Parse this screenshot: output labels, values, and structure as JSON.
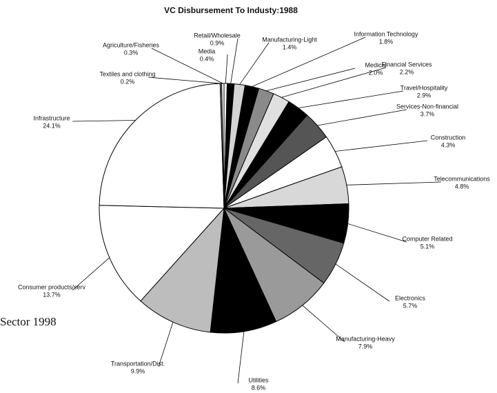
{
  "chart_data": {
    "type": "pie",
    "title": "VC Disbursement To Industy:1988",
    "caption": "Sector 1998",
    "categories": [
      "Media",
      "Retail/Wholesale",
      "Manufacturing-Light",
      "Information Technology",
      "Medical",
      "Financial Services",
      "Travel/Hospitality",
      "Services-Non-financial",
      "Construction",
      "Telecommunications",
      "Computer Related",
      "Electronics",
      "Manufacturing-Heavy",
      "Utilities",
      "Transportation/Dist.",
      "Consumer products/serv",
      "Infrastructure",
      "Textiles and clothing",
      "Agriculture/Fisheries"
    ],
    "values": [
      0.4,
      0.9,
      1.4,
      1.8,
      2.0,
      2.2,
      2.9,
      3.7,
      4.3,
      4.8,
      5.1,
      5.7,
      7.9,
      8.6,
      9.9,
      13.7,
      24.1,
      0.2,
      0.3
    ],
    "value_labels": [
      "0.4%",
      "0.9%",
      "1.4%",
      "1.8%",
      "2.0%",
      "2.2%",
      "2.9%",
      "3.7%",
      "4.3%",
      "4.8%",
      "5.1%",
      "5.7%",
      "7.9%",
      "8.6%",
      "9.9%",
      "13.7%",
      "24.1%",
      "0.2%",
      "0.3%"
    ],
    "colors": [
      "#ffffff",
      "#000000",
      "#d4d4d4",
      "#000000",
      "#8a8a8a",
      "#e0e0e0",
      "#000000",
      "#555555",
      "#ffffff",
      "#d8d8d8",
      "#000000",
      "#666666",
      "#9a9a9a",
      "#000000",
      "#bdbdbd",
      "#ffffff",
      "#ffffff",
      "#888888",
      "#ffffff"
    ]
  }
}
